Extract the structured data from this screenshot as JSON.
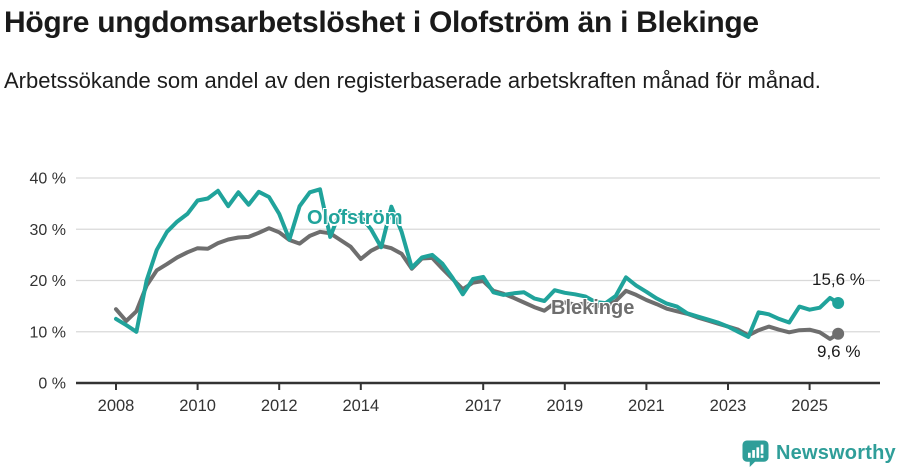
{
  "header": {
    "title": "Högre ungdomsarbetslöshet i Olofström än i Blekinge",
    "subtitle": "Arbetssökande som andel av den registerbaserade arbetskraften månad för månad."
  },
  "colors": {
    "olofstrom": "#20a39b",
    "blekinge": "#6e6e6e",
    "grid": "#d9d9d9",
    "axis": "#333333",
    "text": "#1a1a1a",
    "brand": "#2f9e99"
  },
  "chart_data": {
    "type": "line",
    "title": "Högre ungdomsarbetslöshet i Olofström än i Blekinge",
    "subtitle": "Arbetssökande som andel av den registerbaserade arbetskraften månad för månad.",
    "xlabel": "",
    "ylabel": "",
    "y_unit": "%",
    "xlim": [
      2007.8,
      2026.0
    ],
    "ylim": [
      0,
      42
    ],
    "grid": "horizontal",
    "legend": "inline-labels",
    "x_ticks": [
      2008,
      2010,
      2012,
      2014,
      2017,
      2019,
      2021,
      2023,
      2025
    ],
    "x_tick_labels": [
      "2008",
      "2010",
      "2012",
      "2014",
      "2017",
      "2019",
      "2021",
      "2023",
      "2025"
    ],
    "y_ticks": [
      0,
      10,
      20,
      30,
      40
    ],
    "y_tick_labels": [
      "0 %",
      "10 %",
      "20 %",
      "30 %",
      "40 %"
    ],
    "x": [
      2008,
      2008.25,
      2008.5,
      2008.75,
      2009,
      2009.25,
      2009.5,
      2009.75,
      2010,
      2010.25,
      2010.5,
      2010.75,
      2011,
      2011.25,
      2011.5,
      2011.75,
      2012,
      2012.25,
      2012.5,
      2012.75,
      2013,
      2013.25,
      2013.5,
      2013.75,
      2014,
      2014.25,
      2014.5,
      2014.75,
      2015,
      2015.25,
      2015.5,
      2015.75,
      2016,
      2016.25,
      2016.5,
      2016.75,
      2017,
      2017.25,
      2017.5,
      2017.75,
      2018,
      2018.25,
      2018.5,
      2018.75,
      2019,
      2019.25,
      2019.5,
      2019.75,
      2020,
      2020.25,
      2020.5,
      2020.75,
      2021,
      2021.25,
      2021.5,
      2021.75,
      2022,
      2022.25,
      2022.5,
      2022.75,
      2023,
      2023.25,
      2023.5,
      2023.75,
      2024,
      2024.25,
      2024.5,
      2024.75,
      2025,
      2025.25,
      2025.5,
      2025.7
    ],
    "series": [
      {
        "name": "Olofström",
        "color": "#20a39b",
        "end_label": "15,6 %",
        "end_value": 15.6,
        "values": [
          12.5,
          11.3,
          10.0,
          20.0,
          26.0,
          29.5,
          31.5,
          33.0,
          35.6,
          36.0,
          37.5,
          34.5,
          37.2,
          34.8,
          37.3,
          36.3,
          33.0,
          28.0,
          34.5,
          37.2,
          37.8,
          28.5,
          33.6,
          33.0,
          32.5,
          30.0,
          26.5,
          34.4,
          29.5,
          22.5,
          24.5,
          25.0,
          23.3,
          20.5,
          17.3,
          20.3,
          20.7,
          17.7,
          17.2,
          17.5,
          17.7,
          16.5,
          16.0,
          18.1,
          17.6,
          17.3,
          16.9,
          15.8,
          15.6,
          17.0,
          20.6,
          19.0,
          17.8,
          16.5,
          15.5,
          14.9,
          13.6,
          13.0,
          12.4,
          11.8,
          11.0,
          10.0,
          9.0,
          13.8,
          13.4,
          12.5,
          11.8,
          14.9,
          14.3,
          14.7,
          16.6,
          15.6
        ]
      },
      {
        "name": "Blekinge",
        "color": "#6e6e6e",
        "end_label": "9,6 %",
        "end_value": 9.6,
        "values": [
          14.4,
          12.1,
          14.0,
          19.0,
          22.0,
          23.2,
          24.5,
          25.5,
          26.3,
          26.2,
          27.3,
          28.0,
          28.4,
          28.5,
          29.3,
          30.2,
          29.4,
          27.9,
          27.2,
          28.7,
          29.5,
          29.2,
          27.9,
          26.6,
          24.2,
          25.8,
          26.8,
          26.3,
          25.2,
          22.3,
          24.3,
          24.4,
          22.3,
          20.3,
          18.3,
          19.6,
          19.9,
          18.0,
          17.4,
          16.6,
          15.7,
          14.8,
          14.1,
          15.6,
          15.7,
          15.3,
          15.5,
          15.1,
          14.9,
          16.0,
          18.0,
          17.2,
          16.2,
          15.4,
          14.5,
          14.0,
          13.5,
          12.8,
          12.2,
          11.6,
          11.0,
          10.4,
          9.3,
          10.3,
          11.0,
          10.4,
          9.9,
          10.3,
          10.4,
          9.9,
          8.6,
          9.6
        ]
      }
    ]
  },
  "footer": {
    "brand": "Newsworthy"
  }
}
